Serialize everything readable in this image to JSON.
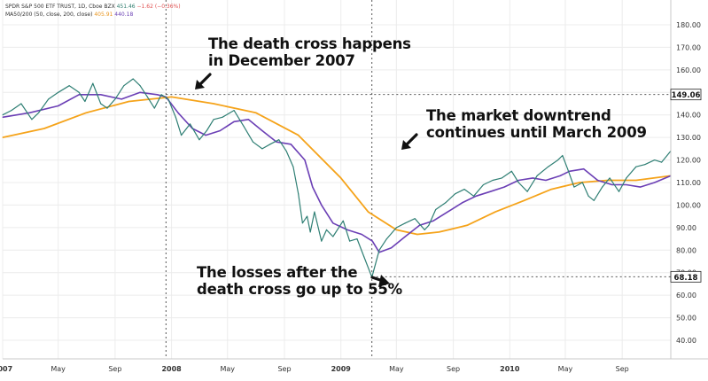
{
  "legend": {
    "symbol": "SPDR S&P 500 ETF TRUST, 1D, Cboe BZX",
    "last": "451.46",
    "change": "−1.62 (−0.36%)",
    "ma_label": "MA50/200 (50, close, 200, close)",
    "ma200_value": "405.91",
    "ma50_value": "440.18"
  },
  "annotations": {
    "death_cross": [
      "The death cross happens",
      "in December 2007"
    ],
    "downtrend": [
      "The market downtrend",
      "continues until March 2009"
    ],
    "losses": [
      "The losses after the",
      "death cross go up to 55%"
    ]
  },
  "colors": {
    "price": "#2f7f74",
    "ma50": "#6b3fb5",
    "ma200": "#f5a31a",
    "grid": "#ececec",
    "axis_text": "#333333"
  },
  "chart_data": {
    "type": "line",
    "title": "",
    "xlabel": "",
    "ylabel": "",
    "x_range": [
      "2007-01-01",
      "2010-12-15"
    ],
    "ylim": [
      30,
      190
    ],
    "y_ticks": [
      40,
      50,
      60,
      70,
      80,
      90,
      100,
      110,
      120,
      130,
      140,
      150,
      160,
      170,
      180
    ],
    "y_tick_labels": [
      "40.00",
      "50.00",
      "60.00",
      "70.00",
      "80.00",
      "90.00",
      "100.00",
      "110.00",
      "120.00",
      "130.00",
      "140.00",
      "150.00",
      "160.00",
      "170.00",
      "180.00"
    ],
    "x_ticks": [
      {
        "date": "2007-01-01",
        "label": "2007",
        "bold": true
      },
      {
        "date": "2007-05-01",
        "label": "May",
        "bold": false
      },
      {
        "date": "2007-09-01",
        "label": "Sep",
        "bold": false
      },
      {
        "date": "2008-01-01",
        "label": "2008",
        "bold": true
      },
      {
        "date": "2008-05-01",
        "label": "May",
        "bold": false
      },
      {
        "date": "2008-09-01",
        "label": "Sep",
        "bold": false
      },
      {
        "date": "2009-01-01",
        "label": "2009",
        "bold": true
      },
      {
        "date": "2009-05-01",
        "label": "May",
        "bold": false
      },
      {
        "date": "2009-09-01",
        "label": "Sep",
        "bold": false
      },
      {
        "date": "2010-01-01",
        "label": "2010",
        "bold": true
      },
      {
        "date": "2010-05-01",
        "label": "May",
        "bold": false
      },
      {
        "date": "2010-09-01",
        "label": "Sep",
        "bold": false
      }
    ],
    "grid": true,
    "price_markers": [
      {
        "date": "2007-12-20",
        "value": 149.06,
        "label": "149.06"
      },
      {
        "date": "2009-03-09",
        "value": 68.18,
        "label": "68.18"
      }
    ],
    "vertical_markers": [
      "2007-12-20",
      "2009-03-09"
    ],
    "series": [
      {
        "key": "price",
        "x": [
          "2007-01-01",
          "2007-01-20",
          "2007-02-10",
          "2007-03-05",
          "2007-03-20",
          "2007-04-10",
          "2007-05-01",
          "2007-05-25",
          "2007-06-15",
          "2007-06-28",
          "2007-07-15",
          "2007-08-01",
          "2007-08-15",
          "2007-09-01",
          "2007-09-20",
          "2007-10-10",
          "2007-10-25",
          "2007-11-10",
          "2007-11-25",
          "2007-12-10",
          "2007-12-25",
          "2008-01-10",
          "2008-01-22",
          "2008-02-10",
          "2008-03-01",
          "2008-03-17",
          "2008-04-01",
          "2008-04-20",
          "2008-05-15",
          "2008-06-05",
          "2008-06-25",
          "2008-07-15",
          "2008-08-01",
          "2008-08-20",
          "2008-09-05",
          "2008-09-20",
          "2008-10-01",
          "2008-10-10",
          "2008-10-20",
          "2008-10-27",
          "2008-11-05",
          "2008-11-20",
          "2008-12-01",
          "2008-12-15",
          "2009-01-06",
          "2009-01-20",
          "2009-02-05",
          "2009-02-20",
          "2009-03-09",
          "2009-03-25",
          "2009-04-10",
          "2009-05-01",
          "2009-05-20",
          "2009-06-10",
          "2009-07-01",
          "2009-07-10",
          "2009-07-25",
          "2009-08-15",
          "2009-09-05",
          "2009-09-25",
          "2009-10-15",
          "2009-11-05",
          "2009-11-25",
          "2009-12-15",
          "2010-01-05",
          "2010-01-20",
          "2010-02-08",
          "2010-03-01",
          "2010-03-25",
          "2010-04-15",
          "2010-04-25",
          "2010-05-06",
          "2010-05-20",
          "2010-06-07",
          "2010-06-20",
          "2010-07-02",
          "2010-07-20",
          "2010-08-05",
          "2010-08-25",
          "2010-09-10",
          "2010-10-01",
          "2010-10-20",
          "2010-11-10",
          "2010-11-25",
          "2010-12-15"
        ],
        "y": [
          140,
          142,
          145,
          138,
          141,
          147,
          150,
          153,
          150,
          146,
          154,
          145,
          143,
          147,
          153,
          156,
          153,
          148,
          143,
          149,
          147,
          139,
          131,
          136,
          129,
          133,
          138,
          139,
          142,
          135,
          128,
          125,
          127,
          129,
          124,
          117,
          105,
          92,
          95,
          88,
          97,
          84,
          89,
          86,
          93,
          84,
          85,
          77,
          68,
          80,
          85,
          90,
          92,
          94,
          89,
          91,
          98,
          101,
          105,
          107,
          104,
          109,
          111,
          112,
          115,
          110,
          106,
          113,
          117,
          120,
          122,
          116,
          108,
          110,
          104,
          102,
          108,
          112,
          106,
          112,
          117,
          118,
          120,
          119,
          124
        ]
      },
      {
        "key": "ma50",
        "x": [
          "2007-01-01",
          "2007-03-01",
          "2007-05-01",
          "2007-06-15",
          "2007-08-01",
          "2007-09-15",
          "2007-10-25",
          "2007-12-01",
          "2007-12-20",
          "2008-01-15",
          "2008-02-15",
          "2008-03-15",
          "2008-04-15",
          "2008-05-15",
          "2008-06-15",
          "2008-07-15",
          "2008-08-15",
          "2008-09-15",
          "2008-10-15",
          "2008-11-01",
          "2008-11-20",
          "2008-12-15",
          "2009-01-15",
          "2009-02-15",
          "2009-03-10",
          "2009-03-25",
          "2009-04-20",
          "2009-05-20",
          "2009-06-20",
          "2009-07-20",
          "2009-08-20",
          "2009-09-20",
          "2009-10-20",
          "2009-11-20",
          "2009-12-20",
          "2010-01-20",
          "2010-02-20",
          "2010-03-20",
          "2010-04-20",
          "2010-05-10",
          "2010-06-10",
          "2010-07-10",
          "2010-08-10",
          "2010-09-10",
          "2010-10-10",
          "2010-11-10",
          "2010-12-15"
        ],
        "y": [
          139,
          141,
          144,
          149,
          149,
          147,
          150,
          149,
          148,
          141,
          134,
          131,
          133,
          137,
          138,
          133,
          128,
          127,
          120,
          108,
          100,
          92,
          89,
          87,
          84,
          79,
          81,
          86,
          91,
          93,
          97,
          101,
          104,
          106,
          108,
          111,
          112,
          111,
          113,
          115,
          116,
          111,
          109,
          109,
          108,
          110,
          113
        ]
      },
      {
        "key": "ma200",
        "x": [
          "2007-01-01",
          "2007-04-01",
          "2007-07-01",
          "2007-10-01",
          "2008-01-01",
          "2008-04-01",
          "2008-07-01",
          "2008-10-01",
          "2009-01-01",
          "2009-03-01",
          "2009-05-01",
          "2009-06-15",
          "2009-08-01",
          "2009-10-01",
          "2009-12-01",
          "2010-02-01",
          "2010-04-01",
          "2010-06-01",
          "2010-08-01",
          "2010-10-01",
          "2010-12-15"
        ],
        "y": [
          130,
          134,
          141,
          146,
          148,
          145,
          141,
          131,
          112,
          97,
          89,
          87,
          88,
          91,
          97,
          102,
          107,
          110,
          111,
          111,
          113
        ]
      }
    ]
  }
}
